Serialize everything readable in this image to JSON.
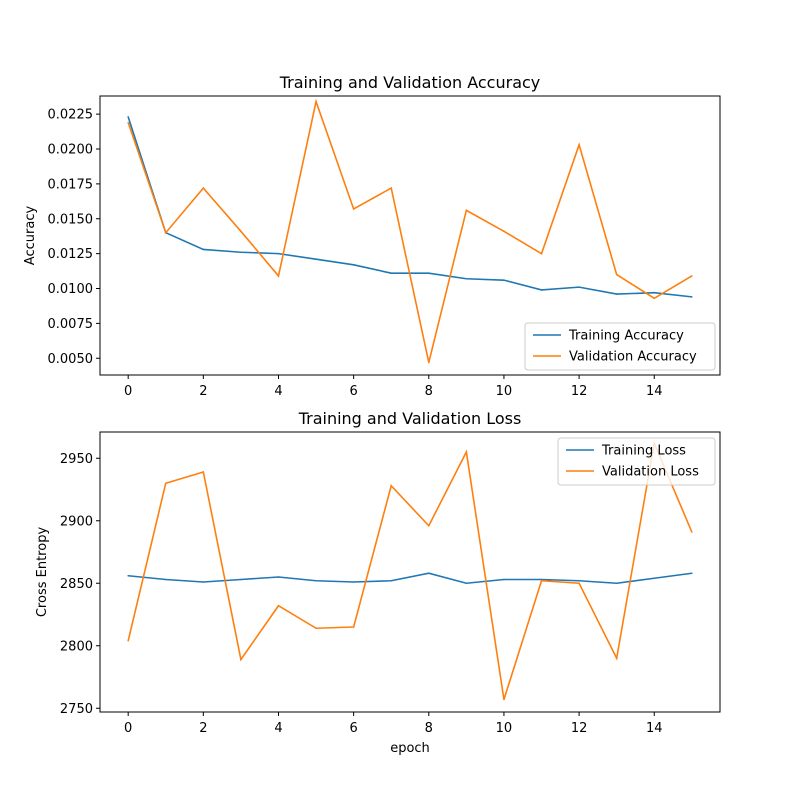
{
  "chart_data": [
    {
      "type": "line",
      "title": "Training and Validation Accuracy",
      "xlabel": "",
      "ylabel": "Accuracy",
      "xlim": [
        -0.75,
        15.75
      ],
      "ylim": [
        0.0038,
        0.0238
      ],
      "xticks": [
        0,
        2,
        4,
        6,
        8,
        10,
        12,
        14
      ],
      "yticks": [
        0.005,
        0.0075,
        0.01,
        0.0125,
        0.015,
        0.0175,
        0.02,
        0.0225
      ],
      "ytick_labels": [
        "0.0050",
        "0.0075",
        "0.0100",
        "0.0125",
        "0.0150",
        "0.0175",
        "0.0200",
        "0.0225"
      ],
      "legend_position": "lower-right",
      "grid": false,
      "x": [
        0,
        1,
        2,
        3,
        4,
        5,
        6,
        7,
        8,
        9,
        10,
        11,
        12,
        13,
        14,
        15
      ],
      "series": [
        {
          "name": "Training Accuracy",
          "color": "#1f77b4",
          "values": [
            0.0223,
            0.014,
            0.0128,
            0.0126,
            0.0125,
            0.0121,
            0.0117,
            0.0111,
            0.0111,
            0.0107,
            0.0106,
            0.0099,
            0.0101,
            0.0096,
            0.0097,
            0.0094
          ]
        },
        {
          "name": "Validation Accuracy",
          "color": "#ff7f0e",
          "values": [
            0.0219,
            0.014,
            0.0172,
            0.0141,
            0.0109,
            0.0234,
            0.0157,
            0.0172,
            0.0047,
            0.0156,
            0.0141,
            0.0125,
            0.0203,
            0.011,
            0.0093,
            0.0109
          ]
        }
      ]
    },
    {
      "type": "line",
      "title": "Training and Validation Loss",
      "xlabel": "epoch",
      "ylabel": "Cross Entropy",
      "xlim": [
        -0.75,
        15.75
      ],
      "ylim": [
        2747,
        2971
      ],
      "xticks": [
        0,
        2,
        4,
        6,
        8,
        10,
        12,
        14
      ],
      "yticks": [
        2750,
        2800,
        2850,
        2900,
        2950
      ],
      "ytick_labels": [
        "2750",
        "2800",
        "2850",
        "2900",
        "2950"
      ],
      "legend_position": "upper-right",
      "grid": false,
      "x": [
        0,
        1,
        2,
        3,
        4,
        5,
        6,
        7,
        8,
        9,
        10,
        11,
        12,
        13,
        14,
        15
      ],
      "series": [
        {
          "name": "Training Loss",
          "color": "#1f77b4",
          "values": [
            2856,
            2853,
            2851,
            2853,
            2855,
            2852,
            2851,
            2852,
            2858,
            2850,
            2853,
            2853,
            2852,
            2850,
            2854,
            2858
          ]
        },
        {
          "name": "Validation Loss",
          "color": "#ff7f0e",
          "values": [
            2804,
            2930,
            2939,
            2789,
            2832,
            2814,
            2815,
            2928,
            2896,
            2955,
            2757,
            2852,
            2850,
            2790,
            2962,
            2891
          ]
        }
      ]
    }
  ]
}
